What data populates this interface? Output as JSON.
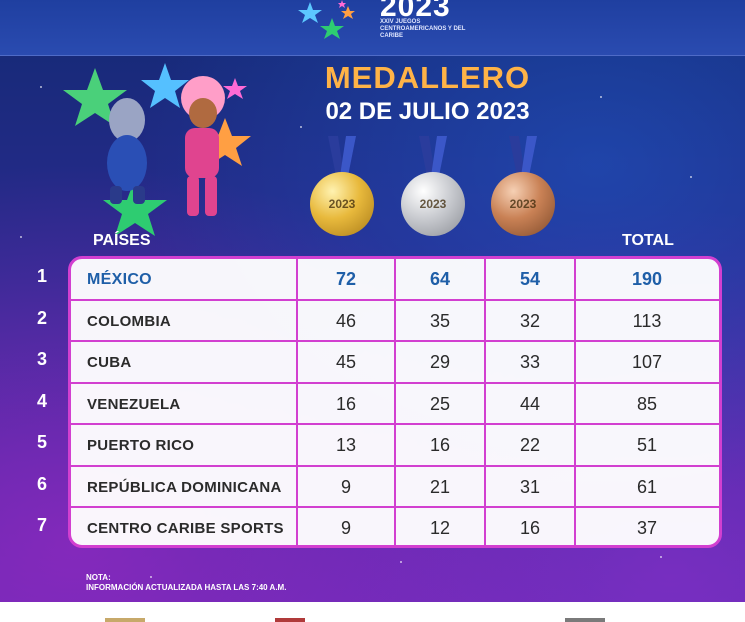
{
  "header": {
    "logo_year": "2023",
    "logo_subtitle": "XXIV JUEGOS CENTROAMERICANOS Y DEL CARIBE"
  },
  "title": {
    "main": "MEDALLERO",
    "date": "02 DE JULIO 2023"
  },
  "medals": [
    {
      "name": "gold",
      "label": "2023",
      "color": "#e8b93c"
    },
    {
      "name": "silver",
      "label": "2023",
      "color": "#c9cbd0"
    },
    {
      "name": "bronze",
      "label": "2023",
      "color": "#c98155"
    }
  ],
  "columns": {
    "countries": "PAÍSES",
    "total": "TOTAL"
  },
  "rows": [
    {
      "rank": "1",
      "country": "MÉXICO",
      "gold": "72",
      "silver": "64",
      "bronze": "54",
      "total": "190"
    },
    {
      "rank": "2",
      "country": "COLOMBIA",
      "gold": "46",
      "silver": "35",
      "bronze": "32",
      "total": "113"
    },
    {
      "rank": "3",
      "country": "CUBA",
      "gold": "45",
      "silver": "29",
      "bronze": "33",
      "total": "107"
    },
    {
      "rank": "4",
      "country": "VENEZUELA",
      "gold": "16",
      "silver": "25",
      "bronze": "44",
      "total": "85"
    },
    {
      "rank": "5",
      "country": "PUERTO RICO",
      "gold": "13",
      "silver": "16",
      "bronze": "22",
      "total": "51"
    },
    {
      "rank": "6",
      "country": "REPÚBLICA DOMINICANA",
      "gold": "9",
      "silver": "21",
      "bronze": "31",
      "total": "61"
    },
    {
      "rank": "7",
      "country": "CENTRO CARIBE SPORTS",
      "gold": "9",
      "silver": "12",
      "bronze": "16",
      "total": "37"
    }
  ],
  "note": {
    "label": "NOTA:",
    "text": "INFORMACIÓN ACTUALIZADA HASTA LAS 7:40 A.M."
  },
  "colors": {
    "accent": "#d23fd0",
    "title_orange": "#ffb347",
    "leader_blue": "#1f5fa8"
  }
}
